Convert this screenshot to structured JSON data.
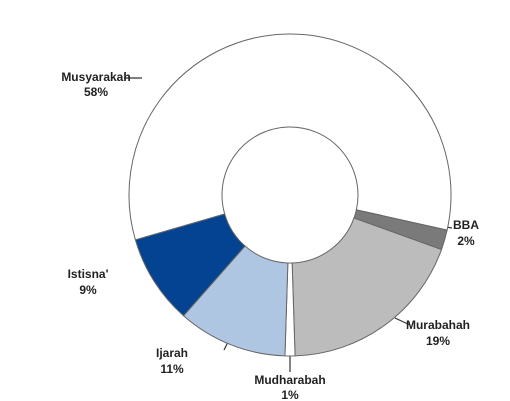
{
  "chart_data": {
    "type": "pie",
    "categories": [
      "Musyarakah",
      "BBA",
      "Murabahah",
      "Mudharabah",
      "Ijarah",
      "Istisna'"
    ],
    "values": [
      58,
      2,
      19,
      1,
      11,
      9
    ],
    "value_labels": [
      "58%",
      "2%",
      "19%",
      "1%",
      "11%",
      "9%"
    ],
    "colors": [
      "#ffffff",
      "#7a7a7a",
      "#bcbcbc",
      "#ffffff",
      "#aec6e2",
      "#034391"
    ]
  }
}
